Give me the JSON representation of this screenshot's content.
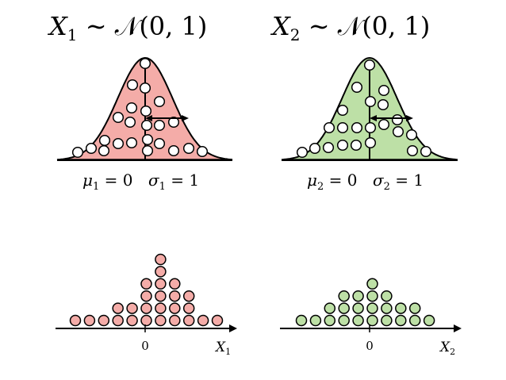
{
  "panels": [
    {
      "id": "x1",
      "title": {
        "var": "X",
        "sub": "1",
        "rest": " ∼ 𝒩(0, 1)"
      },
      "mu_label": {
        "sym": "μ",
        "sub": "1",
        "rest": " = 0"
      },
      "sigma_label": {
        "sym": "σ",
        "sub": "1",
        "rest": " = 1"
      },
      "fill_color": "#f4aca8",
      "dot_color": "#f4aca8",
      "axis_tick": "0",
      "axis_label": {
        "var": "X",
        "sub": "1"
      },
      "sample_counts": [
        1,
        1,
        1,
        2,
        2,
        4,
        6,
        4,
        3,
        1,
        1
      ]
    },
    {
      "id": "x2",
      "title": {
        "var": "X",
        "sub": "2",
        "rest": " ∼ 𝒩(0, 1)"
      },
      "mu_label": {
        "sym": "μ",
        "sub": "2",
        "rest": " = 0"
      },
      "sigma_label": {
        "sym": "σ",
        "sub": "2",
        "rest": " = 1"
      },
      "fill_color": "#bde0a6",
      "dot_color": "#bde0a6",
      "axis_tick": "0",
      "axis_label": {
        "var": "X",
        "sub": "2"
      },
      "sample_counts": [
        1,
        1,
        2,
        3,
        3,
        4,
        3,
        2,
        2,
        1
      ]
    }
  ]
}
